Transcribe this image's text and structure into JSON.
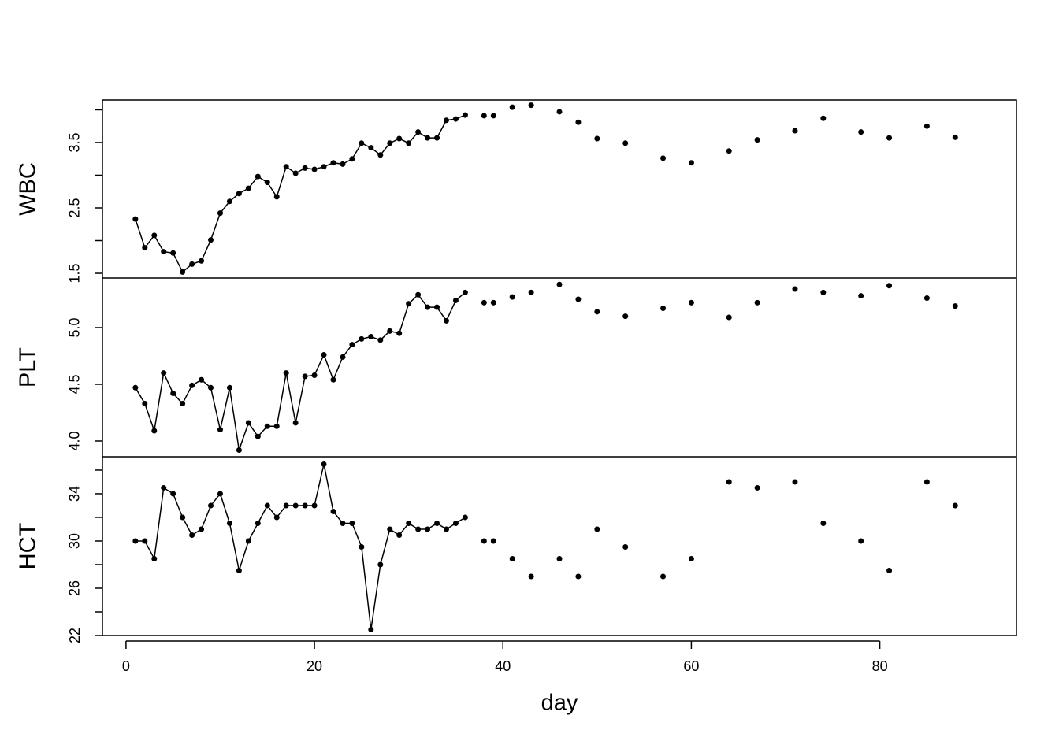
{
  "chart_data": {
    "type": "line",
    "xlabel": "day",
    "xlim": [
      -2.5,
      94.5
    ],
    "xticks": [
      0,
      20,
      40,
      60,
      80
    ],
    "color": "#000000",
    "panels": [
      {
        "ylabel": "WBC",
        "ylim": [
          1.428,
          4.15
        ],
        "yticks": [
          1.5,
          2.5,
          3.5
        ],
        "minor_yticks": [
          2,
          3,
          4
        ],
        "series": [
          {
            "style": "line+points",
            "x": [
              1,
              2,
              3,
              4,
              5,
              6,
              7,
              8,
              9,
              10,
              11,
              12,
              13,
              14,
              15,
              16,
              17,
              18,
              19,
              20,
              21,
              22,
              23,
              24,
              25,
              26,
              27,
              28,
              29,
              30,
              31,
              32,
              33,
              34,
              35,
              36
            ],
            "values": [
              2.33,
              1.89,
              2.08,
              1.83,
              1.81,
              1.52,
              1.64,
              1.69,
              2.01,
              2.42,
              2.6,
              2.72,
              2.8,
              2.98,
              2.89,
              2.67,
              3.13,
              3.03,
              3.11,
              3.09,
              3.13,
              3.19,
              3.17,
              3.25,
              3.49,
              3.42,
              3.31,
              3.49,
              3.56,
              3.49,
              3.66,
              3.57,
              3.57,
              3.84,
              3.86,
              3.92
            ]
          },
          {
            "style": "points",
            "x": [
              38,
              39,
              41,
              43,
              46,
              48,
              50,
              53,
              57,
              60,
              64,
              67,
              71,
              74,
              78,
              81,
              85,
              88
            ],
            "values": [
              3.91,
              3.91,
              4.04,
              4.07,
              3.97,
              3.81,
              3.56,
              3.49,
              3.26,
              3.19,
              3.37,
              3.54,
              3.68,
              3.87,
              3.66,
              3.57,
              3.75,
              3.58
            ]
          }
        ]
      },
      {
        "ylabel": "PLT",
        "ylim": [
          3.861,
          5.4375
        ],
        "yticks": [
          {
            "value": 4,
            "label": "4.0"
          },
          4.5,
          {
            "value": 5,
            "label": "5.0"
          }
        ],
        "minor_yticks": [],
        "series": [
          {
            "style": "line+points",
            "x": [
              1,
              2,
              3,
              4,
              5,
              6,
              7,
              8,
              9,
              10,
              11,
              12,
              13,
              14,
              15,
              16,
              17,
              18,
              19,
              20,
              21,
              22,
              23,
              24,
              25,
              26,
              27,
              28,
              29,
              30,
              31,
              32,
              33,
              34,
              35,
              36
            ],
            "values": [
              4.47,
              4.33,
              4.09,
              4.6,
              4.42,
              4.33,
              4.49,
              4.54,
              4.47,
              4.1,
              4.47,
              3.92,
              4.16,
              4.04,
              4.13,
              4.13,
              4.6,
              4.16,
              4.57,
              4.58,
              4.76,
              4.54,
              4.74,
              4.85,
              4.9,
              4.92,
              4.89,
              4.97,
              4.95,
              5.21,
              5.29,
              5.18,
              5.18,
              5.06,
              5.24,
              5.31
            ]
          },
          {
            "style": "points",
            "x": [
              38,
              39,
              41,
              43,
              46,
              48,
              50,
              53,
              57,
              60,
              64,
              67,
              71,
              74,
              78,
              81,
              85,
              88
            ],
            "values": [
              5.22,
              5.22,
              5.27,
              5.31,
              5.38,
              5.25,
              5.14,
              5.1,
              5.17,
              5.22,
              5.09,
              5.22,
              5.34,
              5.31,
              5.28,
              5.37,
              5.26,
              5.19
            ]
          }
        ]
      },
      {
        "ylabel": "HCT",
        "ylim": [
          22,
          37.13
        ],
        "yticks": [
          22,
          26,
          30,
          34
        ],
        "minor_yticks": [
          24,
          28,
          32,
          36
        ],
        "series": [
          {
            "style": "line+points",
            "x": [
              1,
              2,
              3,
              4,
              5,
              6,
              7,
              8,
              9,
              10,
              11,
              12,
              13,
              14,
              15,
              16,
              17,
              18,
              19,
              20,
              21,
              22,
              23,
              24,
              25,
              26,
              27,
              28,
              29,
              30,
              31,
              32,
              33,
              34,
              35,
              36
            ],
            "values": [
              30,
              30,
              28.5,
              34.5,
              34,
              32,
              30.5,
              31,
              33,
              34,
              31.5,
              27.5,
              30,
              31.5,
              33,
              32,
              33,
              33,
              33,
              33,
              36.5,
              32.5,
              31.5,
              31.5,
              29.5,
              22.5,
              28,
              31,
              30.5,
              31.5,
              31,
              31,
              31.5,
              31,
              31.5,
              32
            ]
          },
          {
            "style": "points",
            "x": [
              38,
              39,
              41,
              43,
              46,
              48,
              50,
              53,
              57,
              60,
              64,
              67,
              71,
              74,
              78,
              81,
              85,
              88
            ],
            "values": [
              30,
              30,
              28.5,
              27,
              28.5,
              27,
              31,
              29.5,
              27,
              28.5,
              35,
              34.5,
              35,
              31.5,
              30,
              27.5,
              35,
              33
            ]
          }
        ]
      }
    ]
  }
}
